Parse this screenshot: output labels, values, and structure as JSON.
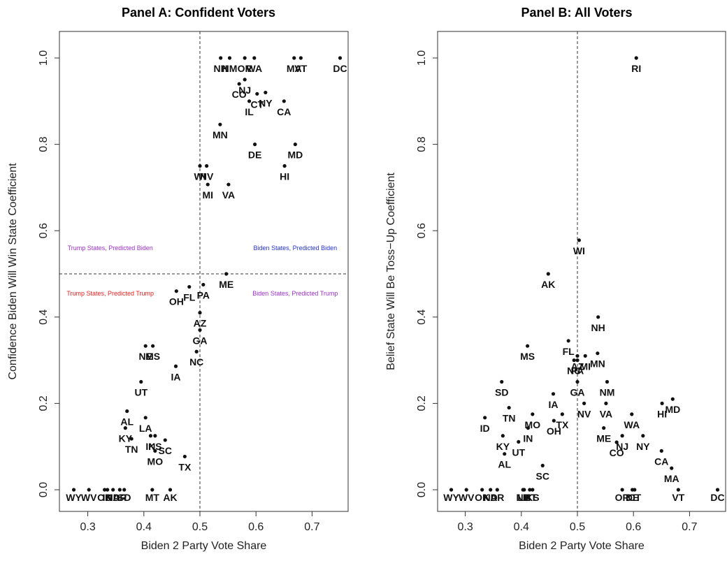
{
  "chart_data": [
    {
      "type": "scatter",
      "title": "Panel A: Confident Voters",
      "xlabel": "Biden 2 Party Vote Share",
      "ylabel": "Confidence Biden Will Win State Coefficient",
      "xlim": [
        0.26,
        0.76
      ],
      "ylim": [
        -0.02,
        1.03
      ],
      "xticks": [
        "0.3",
        "0.4",
        "0.5",
        "0.6",
        "0.7"
      ],
      "yticks": [
        "0.0",
        "0.2",
        "0.4",
        "0.6",
        "0.8",
        "1.0"
      ],
      "reference_lines": {
        "x": 0.5,
        "y": 0.5
      },
      "annotations": [
        {
          "text": "Trump States, Predicted Biden",
          "x": 0.34,
          "y": 0.555,
          "color": "#9b30c8"
        },
        {
          "text": "Biden States, Predicted Biden",
          "x": 0.67,
          "y": 0.555,
          "color": "#2233cc"
        },
        {
          "text": "Trump States, Predicted Trump",
          "x": 0.34,
          "y": 0.45,
          "color": "#e02020"
        },
        {
          "text": "Biden States, Predicted Trump",
          "x": 0.67,
          "y": 0.45,
          "color": "#9b30c8"
        }
      ],
      "points": [
        {
          "label": "WY",
          "x": 0.275,
          "y": 0.0
        },
        {
          "label": "WV",
          "x": 0.302,
          "y": 0.0
        },
        {
          "label": "OK",
          "x": 0.33,
          "y": 0.0
        },
        {
          "label": "ID",
          "x": 0.335,
          "y": 0.0
        },
        {
          "label": "ND",
          "x": 0.345,
          "y": 0.0
        },
        {
          "label": "AR",
          "x": 0.357,
          "y": 0.0
        },
        {
          "label": "SD",
          "x": 0.365,
          "y": 0.0
        },
        {
          "label": "MT",
          "x": 0.415,
          "y": 0.0
        },
        {
          "label": "AK",
          "x": 0.447,
          "y": 0.0
        },
        {
          "label": "AL",
          "x": 0.37,
          "y": 0.182
        },
        {
          "label": "KY",
          "x": 0.367,
          "y": 0.143
        },
        {
          "label": "TN",
          "x": 0.378,
          "y": 0.118
        },
        {
          "label": "LA",
          "x": 0.403,
          "y": 0.167
        },
        {
          "label": "IN",
          "x": 0.412,
          "y": 0.125
        },
        {
          "label": "KS",
          "x": 0.42,
          "y": 0.125
        },
        {
          "label": "SC",
          "x": 0.438,
          "y": 0.115
        },
        {
          "label": "MO",
          "x": 0.42,
          "y": 0.09
        },
        {
          "label": "TX",
          "x": 0.473,
          "y": 0.077
        },
        {
          "label": "UT",
          "x": 0.395,
          "y": 0.25
        },
        {
          "label": "NE",
          "x": 0.403,
          "y": 0.333
        },
        {
          "label": "MS",
          "x": 0.416,
          "y": 0.333
        },
        {
          "label": "IA",
          "x": 0.457,
          "y": 0.286
        },
        {
          "label": "NC",
          "x": 0.494,
          "y": 0.32
        },
        {
          "label": "GA",
          "x": 0.5,
          "y": 0.37
        },
        {
          "label": "AZ",
          "x": 0.5,
          "y": 0.41
        },
        {
          "label": "OH",
          "x": 0.458,
          "y": 0.46
        },
        {
          "label": "FL",
          "x": 0.481,
          "y": 0.47
        },
        {
          "label": "PA",
          "x": 0.506,
          "y": 0.475
        },
        {
          "label": "ME",
          "x": 0.547,
          "y": 0.5
        },
        {
          "label": "WI",
          "x": 0.5,
          "y": 0.75
        },
        {
          "label": "NV",
          "x": 0.512,
          "y": 0.75
        },
        {
          "label": "MI",
          "x": 0.514,
          "y": 0.707
        },
        {
          "label": "VA",
          "x": 0.551,
          "y": 0.707
        },
        {
          "label": "MN",
          "x": 0.536,
          "y": 0.846
        },
        {
          "label": "DE",
          "x": 0.598,
          "y": 0.8
        },
        {
          "label": "MD",
          "x": 0.67,
          "y": 0.8
        },
        {
          "label": "HI",
          "x": 0.651,
          "y": 0.75
        },
        {
          "label": "CO",
          "x": 0.57,
          "y": 0.94
        },
        {
          "label": "NJ",
          "x": 0.58,
          "y": 0.95
        },
        {
          "label": "IL",
          "x": 0.588,
          "y": 0.9
        },
        {
          "label": "CT",
          "x": 0.602,
          "y": 0.917
        },
        {
          "label": "NY",
          "x": 0.617,
          "y": 0.92
        },
        {
          "label": "CA",
          "x": 0.65,
          "y": 0.9
        },
        {
          "label": "NH",
          "x": 0.537,
          "y": 1.0
        },
        {
          "label": "NM",
          "x": 0.553,
          "y": 1.0
        },
        {
          "label": "OR",
          "x": 0.58,
          "y": 1.0
        },
        {
          "label": "WA",
          "x": 0.597,
          "y": 1.0
        },
        {
          "label": "MA",
          "x": 0.668,
          "y": 1.0
        },
        {
          "label": "VT",
          "x": 0.68,
          "y": 1.0
        },
        {
          "label": "DC",
          "x": 0.75,
          "y": 1.0
        }
      ],
      "bottom_row_labels": [
        "WY",
        "WV",
        "OK",
        "ID",
        "ND",
        "AR",
        "SD"
      ]
    },
    {
      "type": "scatter",
      "title": "Panel B: All Voters",
      "xlabel": "Biden 2 Party Vote Share",
      "ylabel": "Belief State Will Be Toss−Up Coefficient",
      "xlim": [
        0.26,
        0.76
      ],
      "ylim": [
        -0.02,
        1.03
      ],
      "xticks": [
        "0.3",
        "0.4",
        "0.5",
        "0.6",
        "0.7"
      ],
      "yticks": [
        "0.0",
        "0.2",
        "0.4",
        "0.6",
        "0.8",
        "1.0"
      ],
      "reference_lines": {
        "x": 0.5
      },
      "points": [
        {
          "label": "RI",
          "x": 0.605,
          "y": 1.0
        },
        {
          "label": "WI",
          "x": 0.503,
          "y": 0.578
        },
        {
          "label": "AK",
          "x": 0.448,
          "y": 0.5
        },
        {
          "label": "NH",
          "x": 0.537,
          "y": 0.4
        },
        {
          "label": "FL",
          "x": 0.484,
          "y": 0.345
        },
        {
          "label": "MS",
          "x": 0.411,
          "y": 0.333
        },
        {
          "label": "NC",
          "x": 0.494,
          "y": 0.3
        },
        {
          "label": "PA",
          "x": 0.5,
          "y": 0.3
        },
        {
          "label": "AZ",
          "x": 0.5,
          "y": 0.31
        },
        {
          "label": "GA",
          "x": 0.5,
          "y": 0.25
        },
        {
          "label": "MI",
          "x": 0.514,
          "y": 0.31
        },
        {
          "label": "MN",
          "x": 0.536,
          "y": 0.316
        },
        {
          "label": "SD",
          "x": 0.365,
          "y": 0.25
        },
        {
          "label": "NM",
          "x": 0.553,
          "y": 0.25
        },
        {
          "label": "IA",
          "x": 0.457,
          "y": 0.222
        },
        {
          "label": "MD",
          "x": 0.67,
          "y": 0.21
        },
        {
          "label": "HI",
          "x": 0.651,
          "y": 0.2
        },
        {
          "label": "NV",
          "x": 0.512,
          "y": 0.2
        },
        {
          "label": "VA",
          "x": 0.551,
          "y": 0.2
        },
        {
          "label": "TN",
          "x": 0.378,
          "y": 0.19
        },
        {
          "label": "MO",
          "x": 0.42,
          "y": 0.175
        },
        {
          "label": "WA",
          "x": 0.597,
          "y": 0.175
        },
        {
          "label": "TX",
          "x": 0.473,
          "y": 0.175
        },
        {
          "label": "ID",
          "x": 0.335,
          "y": 0.167
        },
        {
          "label": "OH",
          "x": 0.458,
          "y": 0.16
        },
        {
          "label": "IN",
          "x": 0.412,
          "y": 0.143
        },
        {
          "label": "ME",
          "x": 0.547,
          "y": 0.143
        },
        {
          "label": "KY",
          "x": 0.367,
          "y": 0.125
        },
        {
          "label": "NY",
          "x": 0.617,
          "y": 0.125
        },
        {
          "label": "NJ",
          "x": 0.58,
          "y": 0.125
        },
        {
          "label": "CO",
          "x": 0.57,
          "y": 0.11
        },
        {
          "label": "UT",
          "x": 0.395,
          "y": 0.111
        },
        {
          "label": "CA",
          "x": 0.65,
          "y": 0.09
        },
        {
          "label": "AL",
          "x": 0.37,
          "y": 0.083
        },
        {
          "label": "SC",
          "x": 0.438,
          "y": 0.056
        },
        {
          "label": "MA",
          "x": 0.668,
          "y": 0.05
        },
        {
          "label": "WY",
          "x": 0.275,
          "y": 0.0
        },
        {
          "label": "WV",
          "x": 0.302,
          "y": 0.0
        },
        {
          "label": "OK",
          "x": 0.33,
          "y": 0.0
        },
        {
          "label": "ND",
          "x": 0.345,
          "y": 0.0
        },
        {
          "label": "AR",
          "x": 0.357,
          "y": 0.0
        },
        {
          "label": "NE",
          "x": 0.403,
          "y": 0.0
        },
        {
          "label": "LA",
          "x": 0.405,
          "y": 0.0
        },
        {
          "label": "MT",
          "x": 0.415,
          "y": 0.0
        },
        {
          "label": "KS",
          "x": 0.42,
          "y": 0.0
        },
        {
          "label": "OR",
          "x": 0.58,
          "y": 0.0
        },
        {
          "label": "DE",
          "x": 0.598,
          "y": 0.0
        },
        {
          "label": "CT",
          "x": 0.602,
          "y": 0.0
        },
        {
          "label": "VT",
          "x": 0.68,
          "y": 0.0
        },
        {
          "label": "DC",
          "x": 0.75,
          "y": 0.0
        }
      ],
      "bottom_row_labels": [
        "WY",
        "WV",
        "OK",
        "ND",
        "AR",
        "NE",
        "LA",
        "MT",
        "KS"
      ]
    }
  ]
}
